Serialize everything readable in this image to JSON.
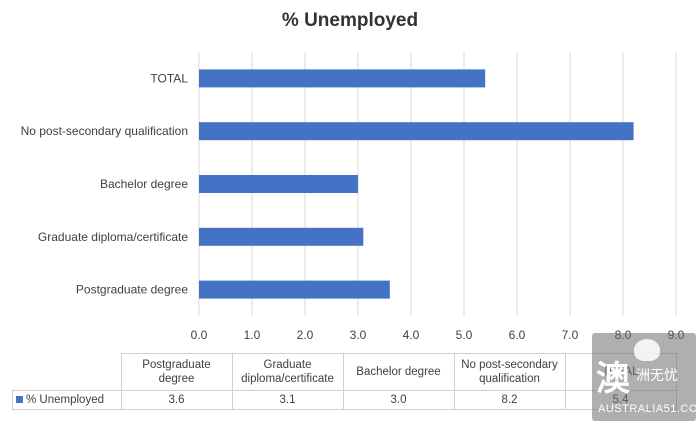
{
  "chart_data": {
    "type": "bar",
    "orientation": "horizontal",
    "title": "% Unemployed",
    "categories": [
      "Postgraduate degree",
      "Graduate diploma/certificate",
      "Bachelor degree",
      "No post-secondary qualification",
      "TOTAL"
    ],
    "series": [
      {
        "name": "% Unemployed",
        "values": [
          3.6,
          3.1,
          3.0,
          8.2,
          5.4
        ]
      }
    ],
    "xlim": [
      0,
      9
    ],
    "x_ticks": [
      "0.0",
      "1.0",
      "2.0",
      "3.0",
      "4.0",
      "5.0",
      "6.0",
      "7.0",
      "8.0",
      "9.0"
    ],
    "grid": true,
    "bar_color": "#4472c4",
    "data_table": {
      "headers": [
        "Postgraduate degree",
        "Graduate diploma/certificate",
        "Bachelor degree",
        "No post-secondary qualification",
        "TOTAL"
      ],
      "row_label": "% Unemployed",
      "values": [
        "3.6",
        "3.1",
        "3.0",
        "8.2",
        "5.4"
      ]
    }
  },
  "watermark": {
    "glyph": "澳",
    "small_text": "洲无忧",
    "domain": "AUSTRALIA51.COM"
  }
}
